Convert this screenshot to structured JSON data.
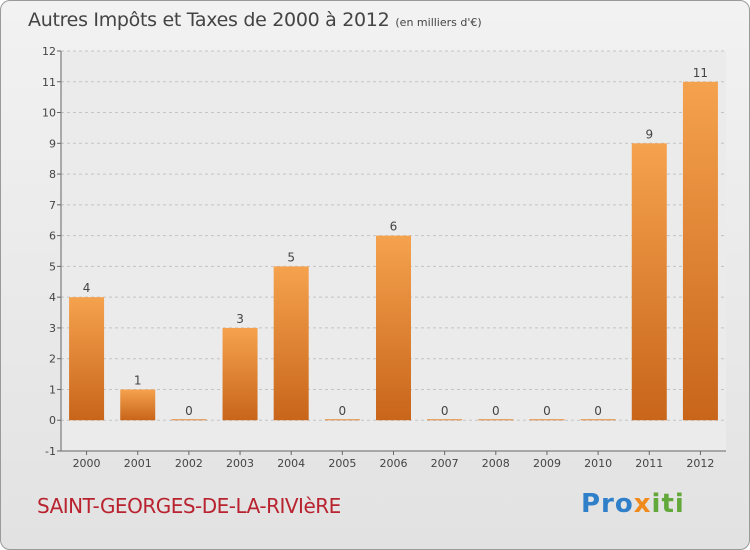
{
  "title": "Autres Impôts et Taxes de 2000 à 2012",
  "unit_label": "(en milliers d'€)",
  "place_name": "SAINT-GEORGES-DE-LA-RIVIèRE",
  "logo": {
    "part1": "Pro",
    "part2": "x",
    "part3": "iti"
  },
  "colors": {
    "bar_light": "#f5a24e",
    "bar_dark": "#c8651a",
    "title": "#444444",
    "place": "#b8232f"
  },
  "chart_data": {
    "type": "bar",
    "title": "Autres Impôts et Taxes de 2000 à 2012",
    "categories": [
      "2000",
      "2001",
      "2002",
      "2003",
      "2004",
      "2005",
      "2006",
      "2007",
      "2008",
      "2009",
      "2010",
      "2011",
      "2012"
    ],
    "values": [
      4,
      1,
      0,
      3,
      5,
      0,
      6,
      0,
      0,
      0,
      0,
      9,
      11
    ],
    "ylim": [
      -1,
      12
    ],
    "yticks": [
      -1,
      0,
      1,
      2,
      3,
      4,
      5,
      6,
      7,
      8,
      9,
      10,
      11,
      12
    ],
    "grid": "horizontal dashed",
    "legend": "none"
  }
}
